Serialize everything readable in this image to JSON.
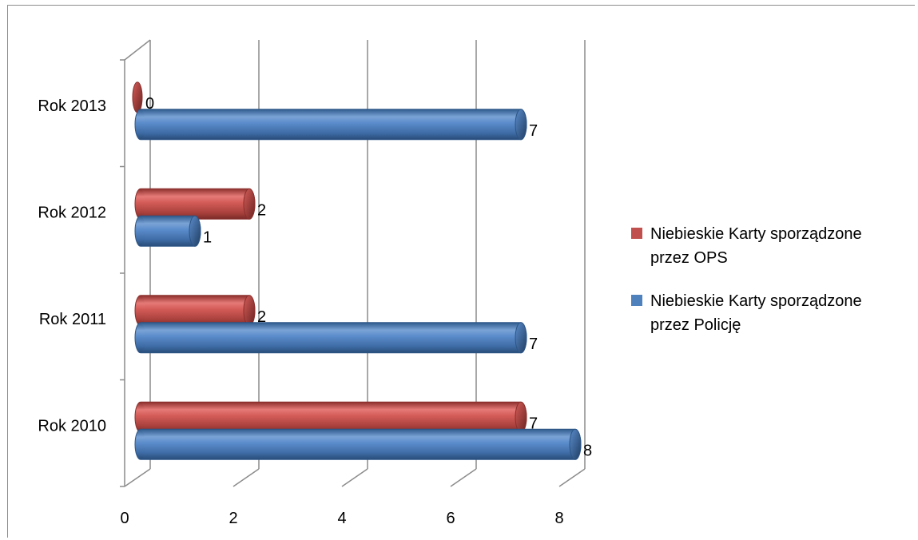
{
  "chart_data": {
    "type": "bar",
    "orientation": "horizontal",
    "style": "3d-cylinder",
    "categories": [
      "Rok 2010",
      "Rok 2011",
      "Rok 2012",
      "Rok 2013"
    ],
    "series": [
      {
        "name": "Niebieskie Karty sporządzone przez Policję",
        "name_lines": [
          "Niebieskie Karty sporządzone",
          "przez Policję"
        ],
        "values": [
          8,
          7,
          1,
          7
        ],
        "color": "#4f81bd"
      },
      {
        "name": "Niebieskie Karty sporządzone przez OPS",
        "name_lines": [
          "Niebieskie Karty sporządzone",
          "przez OPS"
        ],
        "values": [
          7,
          2,
          2,
          0
        ],
        "color": "#c0504d"
      }
    ],
    "xlim": [
      0,
      8
    ],
    "xticks": [
      "0",
      "2",
      "4",
      "6",
      "8"
    ],
    "grid": "vertical",
    "data_labels": true,
    "legend": "right",
    "title": "",
    "xlabel": "",
    "ylabel": ""
  }
}
